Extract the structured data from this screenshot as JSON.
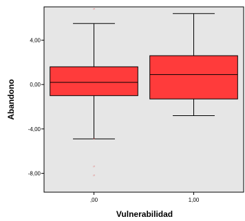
{
  "chart_data": {
    "type": "boxplot",
    "xlabel": "Vulnerabilidad",
    "ylabel": "Abandono",
    "ylim": [
      -9.7,
      7.0
    ],
    "y_ticks": [
      {
        "value": -8,
        "label": "-8,00"
      },
      {
        "value": -4,
        "label": "-4,00"
      },
      {
        "value": 0,
        "label": "0,00"
      },
      {
        "value": 4,
        "label": "4,00"
      }
    ],
    "categories": [
      ".00",
      "1,00"
    ],
    "boxes": [
      {
        "category": ",00",
        "whisker_low": -4.9,
        "q1": -1.0,
        "median": 0.2,
        "q3": 1.6,
        "whisker_high": 5.5,
        "outliers": [
          6.7,
          -5.0,
          -7.5,
          -8.3
        ]
      },
      {
        "category": "1,00",
        "whisker_low": -2.8,
        "q1": -1.3,
        "median": 0.9,
        "q3": 2.6,
        "whisker_high": 6.4,
        "outliers": []
      }
    ],
    "box_color": "#ff3b3b",
    "outlier_color": "#e08080",
    "background_color": "#e6e6e6",
    "grid": false,
    "legend": "none"
  }
}
